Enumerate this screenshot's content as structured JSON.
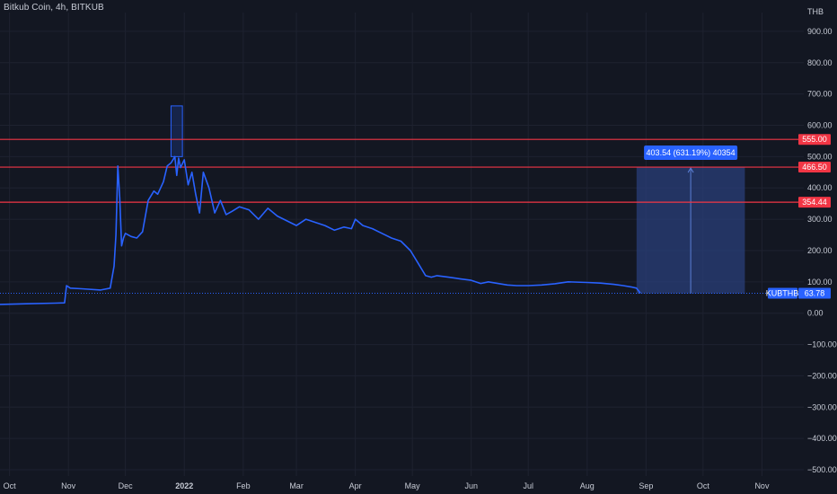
{
  "header": {
    "title": "Bitkub Coin, 4h, BITKUB"
  },
  "colors": {
    "background": "#131722",
    "grid": "#1e2230",
    "price_line": "#2962ff",
    "level_line": "#f23645",
    "measure_fill": "#2a3f7a",
    "measure_label": "#2962ff",
    "axis_text": "#c8ccd6"
  },
  "chart_data": {
    "type": "line",
    "symbol": "KUBTHB",
    "interval": "4h",
    "exchange": "BITKUB",
    "currency_label": "THB",
    "ylim": [
      -520,
      960
    ],
    "y_ticks": [
      900,
      800,
      700,
      600,
      500,
      400,
      300,
      200,
      100,
      0,
      -100,
      -200,
      -300,
      -400,
      -500
    ],
    "y_tick_labels": [
      "900.00",
      "800.00",
      "700.00",
      "600.00",
      "500.00",
      "400.00",
      "300.00",
      "200.00",
      "100.00",
      "0.00",
      "−100.00",
      "−200.00",
      "−300.00",
      "−400.00",
      "−500.00"
    ],
    "x_tick_labels": [
      {
        "label": "Oct",
        "date": "2021-10-01"
      },
      {
        "label": "Nov",
        "date": "2021-11-01"
      },
      {
        "label": "Dec",
        "date": "2021-12-01"
      },
      {
        "label": "2022",
        "date": "2022-01-01"
      },
      {
        "label": "Feb",
        "date": "2022-02-01"
      },
      {
        "label": "Mar",
        "date": "2022-03-01"
      },
      {
        "label": "Apr",
        "date": "2022-04-01"
      },
      {
        "label": "May",
        "date": "2022-05-01"
      },
      {
        "label": "Jun",
        "date": "2022-06-01"
      },
      {
        "label": "Jul",
        "date": "2022-07-01"
      },
      {
        "label": "Aug",
        "date": "2022-08-01"
      },
      {
        "label": "Sep",
        "date": "2022-09-01"
      },
      {
        "label": "Oct",
        "date": "2022-10-01"
      },
      {
        "label": "Nov",
        "date": "2022-11-01"
      }
    ],
    "xlim": [
      "2021-09-26",
      "2022-11-23"
    ],
    "series": [
      {
        "x": [
          "2021-09-26",
          "2021-10-10",
          "2021-10-25",
          "2021-10-30",
          "2021-10-31",
          "2021-11-02",
          "2021-11-08",
          "2021-11-18",
          "2021-11-23",
          "2021-11-25",
          "2021-11-26",
          "2021-11-27",
          "2021-11-28",
          "2021-11-29",
          "2021-11-30",
          "2021-12-01",
          "2021-12-04",
          "2021-12-07",
          "2021-12-10",
          "2021-12-13",
          "2021-12-16",
          "2021-12-18",
          "2021-12-21",
          "2021-12-23",
          "2021-12-25",
          "2021-12-27",
          "2021-12-28",
          "2021-12-29",
          "2021-12-30",
          "2022-01-01",
          "2022-01-03",
          "2022-01-05",
          "2022-01-07",
          "2022-01-09",
          "2022-01-11",
          "2022-01-14",
          "2022-01-17",
          "2022-01-20",
          "2022-01-23",
          "2022-01-26",
          "2022-01-30",
          "2022-02-04",
          "2022-02-09",
          "2022-02-14",
          "2022-02-19",
          "2022-02-24",
          "2022-03-01",
          "2022-03-06",
          "2022-03-11",
          "2022-03-16",
          "2022-03-21",
          "2022-03-26",
          "2022-03-30",
          "2022-04-01",
          "2022-04-05",
          "2022-04-10",
          "2022-04-15",
          "2022-04-20",
          "2022-04-25",
          "2022-04-30",
          "2022-05-04",
          "2022-05-08",
          "2022-05-11",
          "2022-05-14",
          "2022-05-20",
          "2022-05-26",
          "2022-06-01",
          "2022-06-06",
          "2022-06-10",
          "2022-06-15",
          "2022-06-20",
          "2022-06-25",
          "2022-07-01",
          "2022-07-08",
          "2022-07-15",
          "2022-07-22",
          "2022-08-01",
          "2022-08-08",
          "2022-08-15",
          "2022-08-20",
          "2022-08-24",
          "2022-08-27",
          "2022-08-29"
        ],
        "y": [
          28,
          30,
          32,
          33,
          88,
          80,
          78,
          74,
          80,
          150,
          250,
          470,
          370,
          215,
          240,
          255,
          245,
          240,
          260,
          360,
          390,
          380,
          420,
          470,
          480,
          500,
          440,
          495,
          465,
          490,
          410,
          450,
          380,
          320,
          450,
          400,
          320,
          360,
          315,
          325,
          340,
          330,
          300,
          335,
          310,
          295,
          280,
          300,
          290,
          280,
          265,
          275,
          270,
          300,
          280,
          270,
          255,
          240,
          230,
          200,
          160,
          120,
          115,
          120,
          115,
          110,
          105,
          95,
          100,
          95,
          90,
          88,
          88,
          90,
          94,
          100,
          98,
          96,
          92,
          88,
          84,
          80,
          64
        ]
      }
    ],
    "horizontal_levels": [
      {
        "value": 555.0,
        "label": "555.00"
      },
      {
        "value": 466.5,
        "label": "466.50"
      },
      {
        "value": 354.44,
        "label": "354.44"
      }
    ],
    "highlight_box": {
      "x_start": "2021-12-25",
      "x_end": "2021-12-31",
      "y_low": 500,
      "y_high": 662
    },
    "measure_tool": {
      "x_start": "2022-08-27",
      "x_end": "2022-10-23",
      "y_low": 63,
      "y_high": 466.5,
      "label": "403.54 (631.19%) 40354"
    },
    "last_price": {
      "value": 63.78,
      "label": "63.78"
    }
  }
}
